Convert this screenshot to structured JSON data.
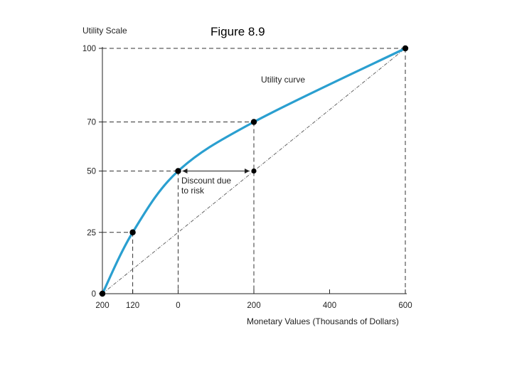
{
  "figure_title": "Figure 8.9",
  "chart_data": {
    "type": "line",
    "ylabel": "Utility Scale",
    "xlabel": "Monetary Values (Thousands of Dollars)",
    "x_tick_labels": [
      "200",
      "120",
      "0",
      "200",
      "400",
      "600"
    ],
    "x_tick_values": [
      -200,
      -120,
      0,
      200,
      400,
      600
    ],
    "y_ticks": [
      0,
      25,
      50,
      70,
      100
    ],
    "xlim": [
      -200,
      600
    ],
    "ylim": [
      0,
      100
    ],
    "grid": false,
    "series": [
      {
        "name": "Utility curve",
        "color": "#2a9fd0",
        "points": [
          {
            "x": -200,
            "y": 0
          },
          {
            "x": -120,
            "y": 25
          },
          {
            "x": 0,
            "y": 50
          },
          {
            "x": 200,
            "y": 70
          },
          {
            "x": 600,
            "y": 100
          }
        ]
      }
    ],
    "reference_line": {
      "from": {
        "x": -200,
        "y": 0
      },
      "to": {
        "x": 600,
        "y": 100
      }
    },
    "risk_point": {
      "x": 200,
      "y": 50
    },
    "guides": [
      {
        "x": -120,
        "y": 25
      },
      {
        "x": 0,
        "y": 50
      },
      {
        "x": 200,
        "y": 70
      },
      {
        "x": 600,
        "y": 100
      }
    ],
    "annotations": {
      "curve_label": "Utility curve",
      "discount_label": [
        "Discount due",
        "to risk"
      ]
    }
  }
}
